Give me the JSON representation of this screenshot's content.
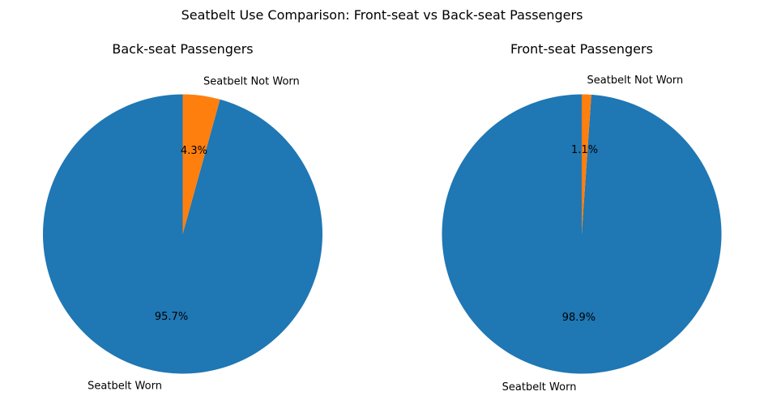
{
  "figure_title": "Seatbelt Use Comparison: Front-seat vs Back-seat Passengers",
  "chart_data": [
    {
      "type": "pie",
      "title": "Back-seat Passengers",
      "labels": [
        "Seatbelt Worn",
        "Seatbelt Not Worn"
      ],
      "values": [
        95.7,
        4.3
      ],
      "pct_labels": [
        "95.7%",
        "4.3%"
      ],
      "colors": [
        "#1f77b4",
        "#ff7f0e"
      ],
      "start_angle_deg": 90,
      "direction": "counterclockwise"
    },
    {
      "type": "pie",
      "title": "Front-seat Passengers",
      "labels": [
        "Seatbelt Worn",
        "Seatbelt Not Worn"
      ],
      "values": [
        98.9,
        1.1
      ],
      "pct_labels": [
        "98.9%",
        "1.1%"
      ],
      "colors": [
        "#1f77b4",
        "#ff7f0e"
      ],
      "start_angle_deg": 90,
      "direction": "counterclockwise"
    }
  ]
}
